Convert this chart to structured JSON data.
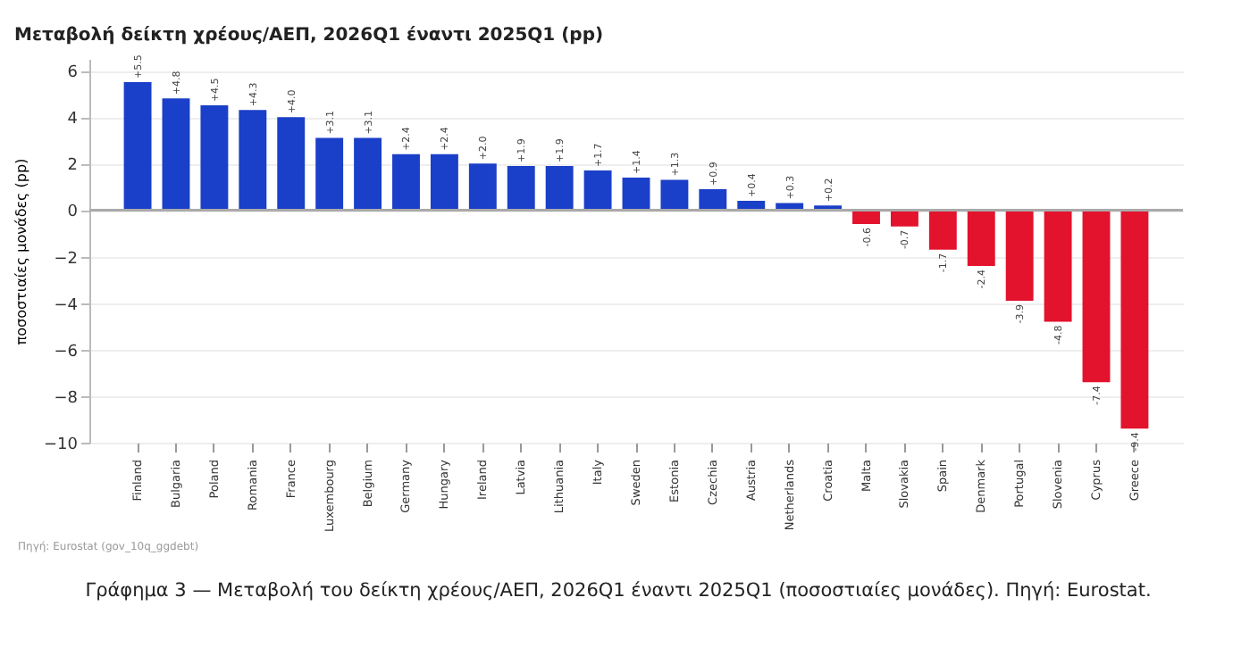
{
  "chart_data": {
    "type": "bar",
    "title": "Μεταβολή δείκτη χρέους/ΑΕΠ, 2026Q1 έναντι 2025Q1 (pp)",
    "ylabel": "ποσοστιαίες μονάδες (pp)",
    "categories": [
      "Finland",
      "Bulgaria",
      "Poland",
      "Romania",
      "France",
      "Luxembourg",
      "Belgium",
      "Germany",
      "Hungary",
      "Ireland",
      "Latvia",
      "Lithuania",
      "Italy",
      "Sweden",
      "Estonia",
      "Czechia",
      "Austria",
      "Netherlands",
      "Croatia",
      "Malta",
      "Slovakia",
      "Spain",
      "Denmark",
      "Portugal",
      "Slovenia",
      "Cyprus",
      "Greece"
    ],
    "values": [
      5.5,
      4.8,
      4.5,
      4.3,
      4.0,
      3.1,
      3.1,
      2.4,
      2.4,
      2.0,
      1.9,
      1.9,
      1.7,
      1.4,
      1.3,
      0.9,
      0.4,
      0.3,
      0.2,
      -0.6,
      -0.7,
      -1.7,
      -2.4,
      -3.9,
      -4.8,
      -7.4,
      -9.4
    ],
    "value_labels": [
      "+5.5",
      "+4.8",
      "+4.5",
      "+4.3",
      "+4.0",
      "+3.1",
      "+3.1",
      "+2.4",
      "+2.4",
      "+2.0",
      "+1.9",
      "+1.9",
      "+1.7",
      "+1.4",
      "+1.3",
      "+0.9",
      "+0.4",
      "+0.3",
      "+0.2",
      "-0.6",
      "-0.7",
      "-1.7",
      "-2.4",
      "-3.9",
      "-4.8",
      "-7.4",
      "-9.4"
    ],
    "colors": [
      "#1a3fc8",
      "#1a3fc8",
      "#1a3fc8",
      "#1a3fc8",
      "#1a3fc8",
      "#1a3fc8",
      "#1a3fc8",
      "#1a3fc8",
      "#1a3fc8",
      "#1a3fc8",
      "#1a3fc8",
      "#1a3fc8",
      "#1a3fc8",
      "#1a3fc8",
      "#1a3fc8",
      "#1a3fc8",
      "#1a3fc8",
      "#1a3fc8",
      "#1a3fc8",
      "#e3122d",
      "#e3122d",
      "#e3122d",
      "#e3122d",
      "#e3122d",
      "#e3122d",
      "#e3122d",
      "#e3122d"
    ],
    "ylim": [
      -10,
      6.5
    ],
    "yticks": [
      -10,
      -8,
      -6,
      -4,
      -2,
      0,
      2,
      4,
      6
    ],
    "grid": "y",
    "annotations": [
      "Πηγή: Eurostat (gov_10q_ggdebt)",
      "Γράφημα 3 — Μεταβολή του δείκτη χρέους/ΑΕΠ, 2026Q1 έναντι 2025Q1 (ποσοστιαίες μονάδες). Πηγή: Eurostat."
    ]
  }
}
